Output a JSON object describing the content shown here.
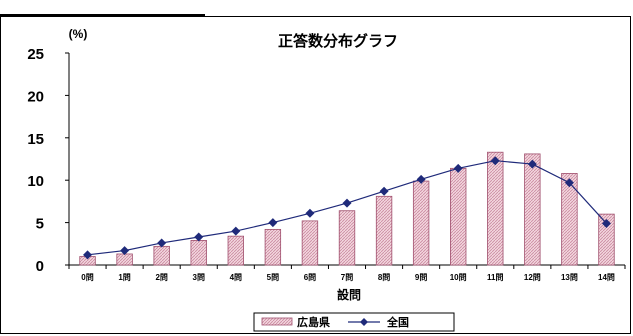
{
  "chart_data": {
    "type": "bar",
    "title": "正答数分布グラフ",
    "ylabel": "(%)",
    "xlabel": "設問",
    "ylim": [
      0,
      25
    ],
    "yticks": [
      0,
      5,
      10,
      15,
      20,
      25
    ],
    "categories": [
      "0問",
      "1問",
      "2問",
      "3問",
      "4問",
      "5問",
      "6問",
      "7問",
      "8問",
      "9問",
      "10問",
      "11問",
      "12問",
      "13問",
      "14問"
    ],
    "series": [
      {
        "name": "広島県",
        "kind": "bar",
        "color": "#e8b7c6",
        "values": [
          1.0,
          1.3,
          2.2,
          2.9,
          3.4,
          4.2,
          5.2,
          6.4,
          8.1,
          9.9,
          11.4,
          13.3,
          13.1,
          10.8,
          6.0
        ]
      },
      {
        "name": "全国",
        "kind": "line",
        "color": "#1f2a7a",
        "values": [
          1.2,
          1.7,
          2.6,
          3.3,
          4.0,
          5.0,
          6.1,
          7.3,
          8.7,
          10.1,
          11.4,
          12.3,
          11.9,
          9.7,
          4.9
        ]
      }
    ],
    "grid": false,
    "legend_position": "bottom"
  }
}
